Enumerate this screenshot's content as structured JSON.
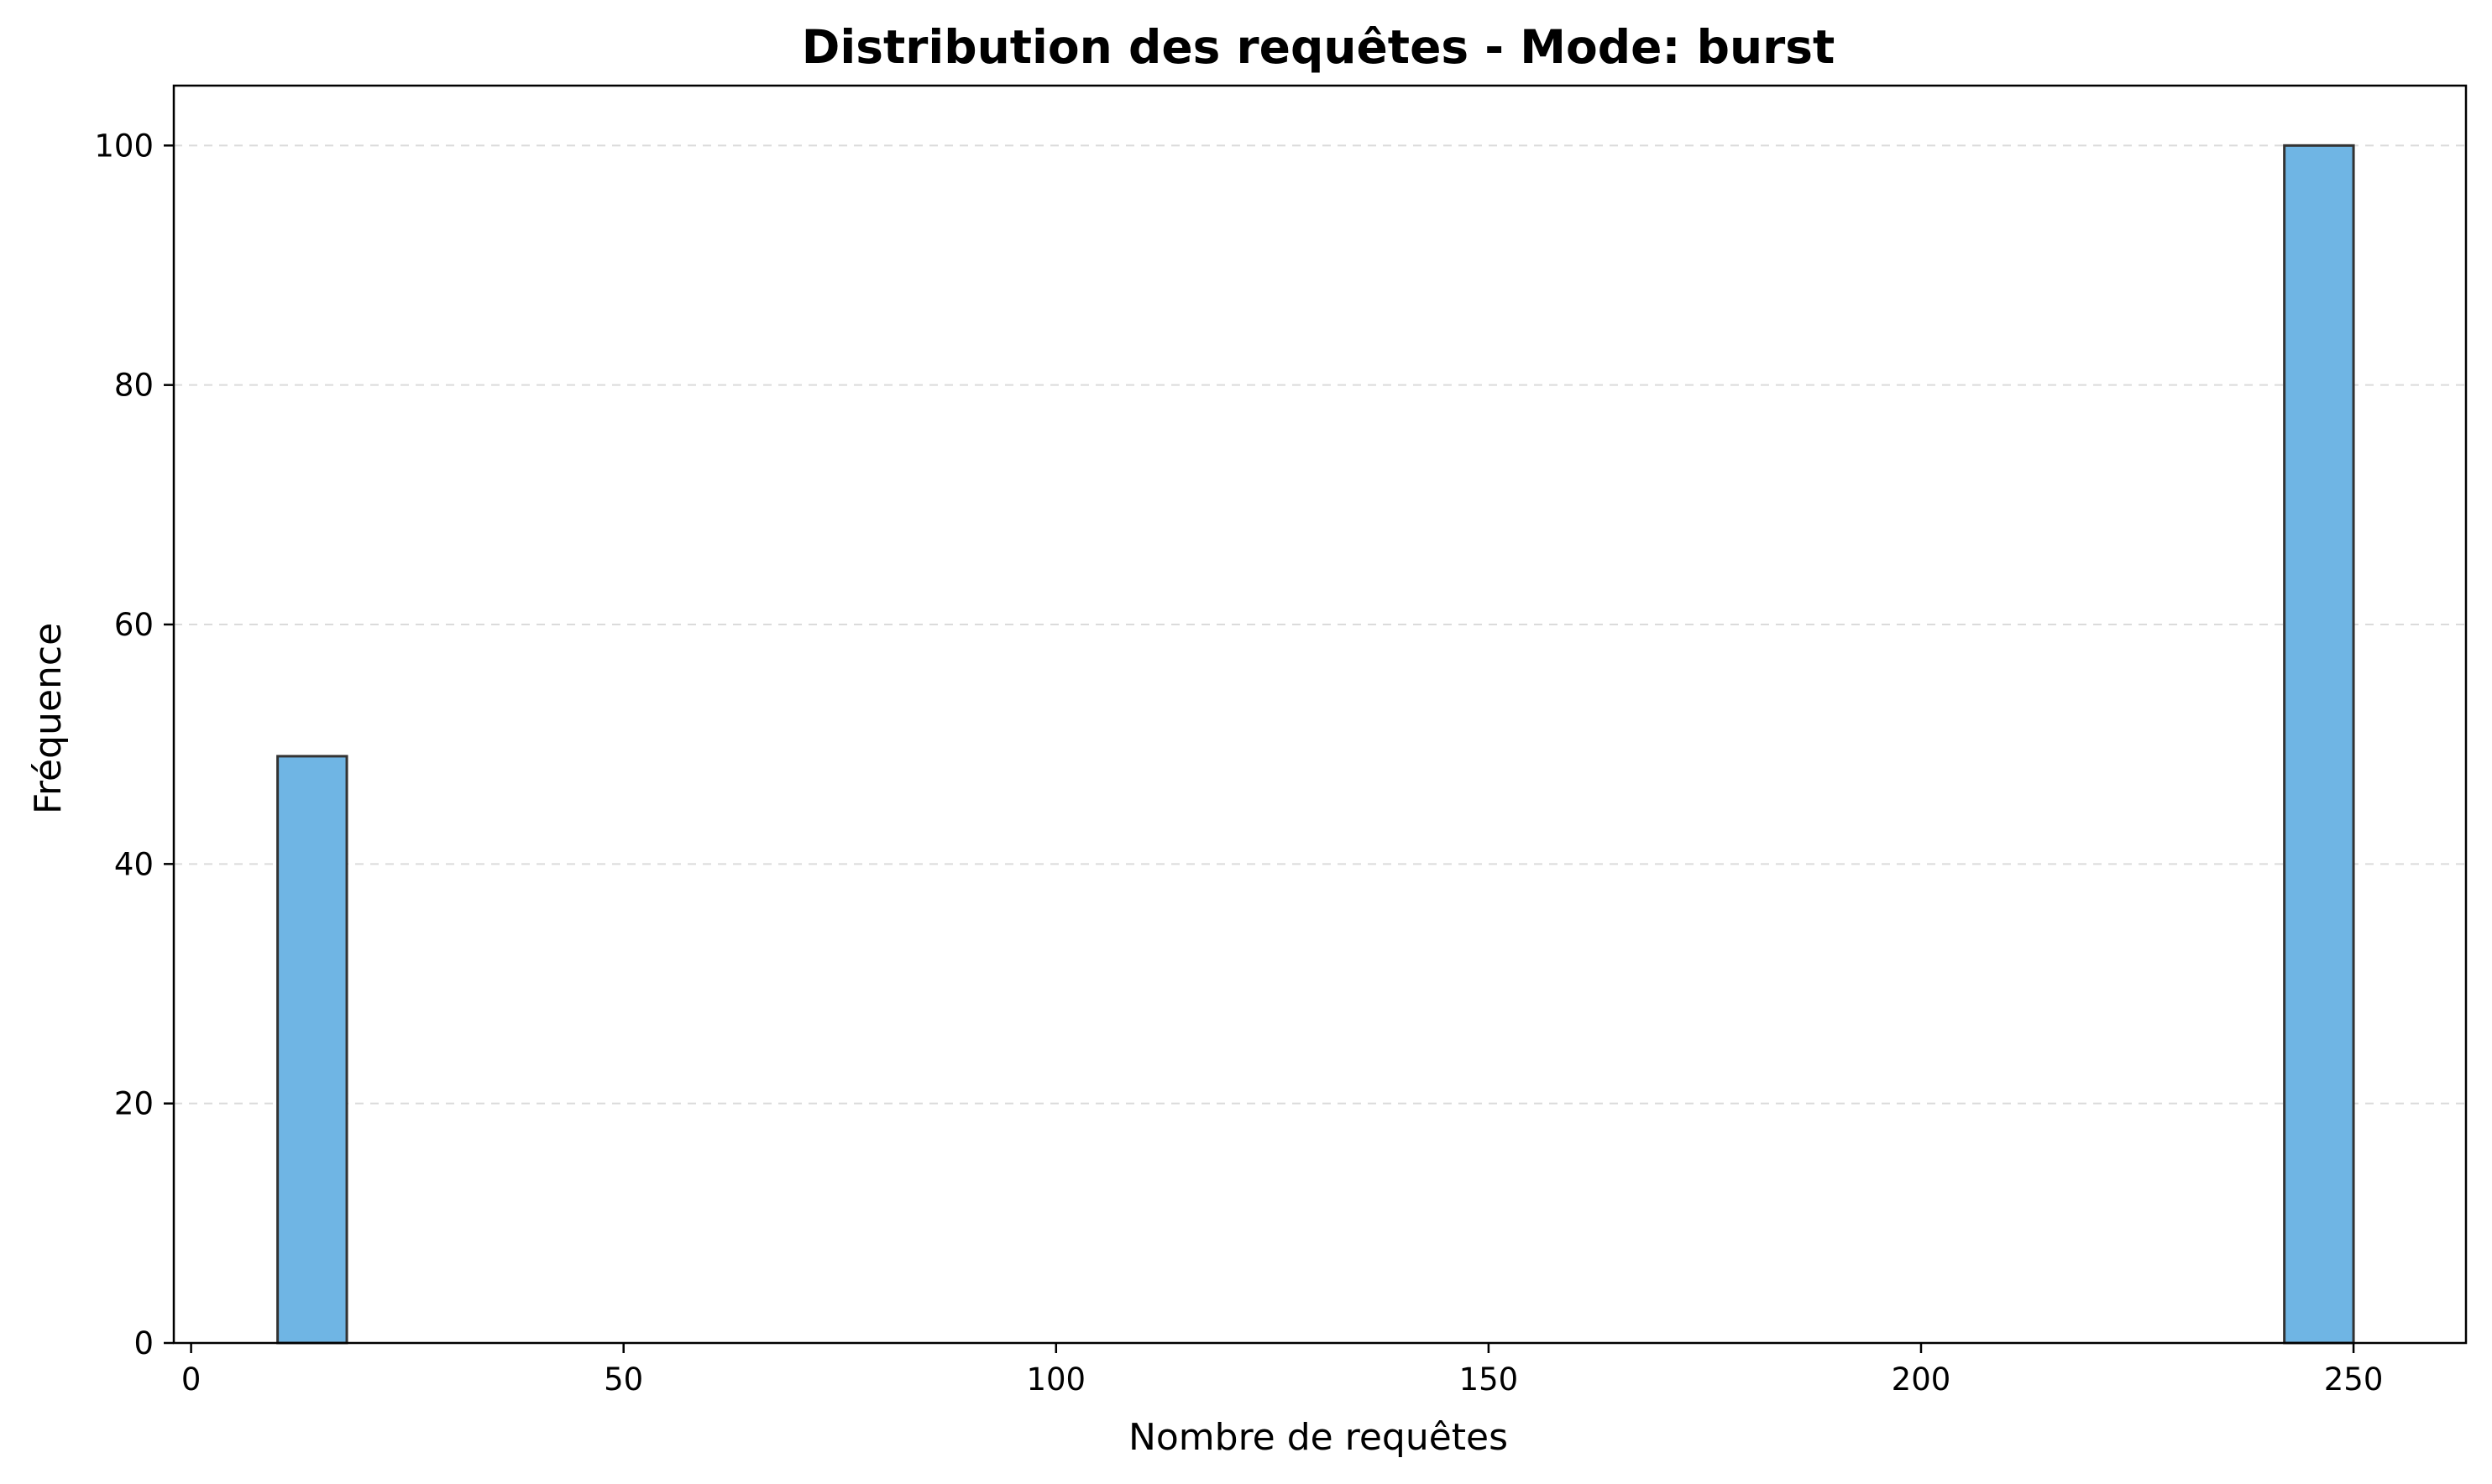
{
  "chart_data": {
    "type": "bar",
    "title": "Distribution des requêtes - Mode: burst",
    "xlabel": "Nombre de requêtes",
    "ylabel": "Fréquence",
    "xlim": [
      -2,
      263
    ],
    "ylim": [
      0,
      105
    ],
    "xticks": [
      0,
      50,
      100,
      150,
      200,
      250
    ],
    "yticks": [
      0,
      20,
      40,
      60,
      80,
      100
    ],
    "grid": "y-dashed",
    "bar_color": "#6fb5e4",
    "bar_edge_color": "#333333",
    "bins": [
      {
        "x0": 10,
        "x1": 18,
        "value": 49
      },
      {
        "x0": 242,
        "x1": 250,
        "value": 100
      }
    ]
  }
}
